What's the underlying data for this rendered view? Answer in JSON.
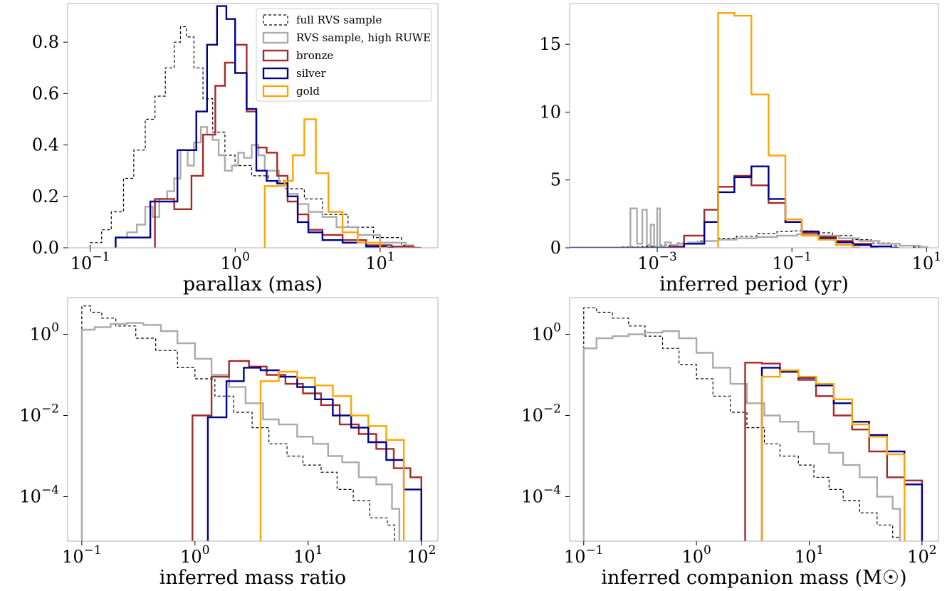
{
  "colors": {
    "full_rvs": "#000000",
    "high_ruwe": "#aaaaaa",
    "bronze": "#a52a2a",
    "silver": "#00008b",
    "gold": "#ffa500"
  },
  "legend": [
    {
      "key": "full_rvs",
      "label": "full RVS sample",
      "dashed": true
    },
    {
      "key": "high_ruwe",
      "label": "RVS sample, high RUWE",
      "dashed": false
    },
    {
      "key": "bronze",
      "label": "bronze",
      "dashed": false
    },
    {
      "key": "silver",
      "label": "silver",
      "dashed": false
    },
    {
      "key": "gold",
      "label": "gold",
      "dashed": false
    }
  ],
  "chart_data": [
    {
      "type": "step",
      "xlabel": "parallax (mas)",
      "xscale": "log",
      "yscale": "linear",
      "xlim": [
        0.07,
        25
      ],
      "ylim": [
        0,
        0.95
      ],
      "xticks": [
        {
          "v": 0.1,
          "b": "10",
          "e": "−1"
        },
        {
          "v": 1,
          "b": "10",
          "e": "0"
        },
        {
          "v": 10,
          "b": "10",
          "e": "1"
        }
      ],
      "yticks": [
        {
          "v": 0,
          "t": "0.0"
        },
        {
          "v": 0.2,
          "t": "0.2"
        },
        {
          "v": 0.4,
          "t": "0.4"
        },
        {
          "v": 0.6,
          "t": "0.6"
        },
        {
          "v": 0.8,
          "t": "0.8"
        }
      ],
      "legend_position": "top-right",
      "series": [
        {
          "key": "full_rvs",
          "x": [
            0.1,
            0.12,
            0.14,
            0.17,
            0.2,
            0.24,
            0.28,
            0.33,
            0.38,
            0.42,
            0.46,
            0.52,
            0.6,
            0.7,
            0.85,
            1.0,
            1.3,
            1.7,
            2.2,
            3,
            4,
            6,
            9,
            14
          ],
          "y": [
            0.02,
            0.07,
            0.14,
            0.27,
            0.38,
            0.5,
            0.59,
            0.7,
            0.8,
            0.86,
            0.82,
            0.7,
            0.58,
            0.45,
            0.36,
            0.32,
            0.28,
            0.26,
            0.23,
            0.19,
            0.13,
            0.08,
            0.04,
            0.01
          ]
        },
        {
          "key": "high_ruwe",
          "x": [
            0.15,
            0.18,
            0.21,
            0.24,
            0.27,
            0.3,
            0.34,
            0.38,
            0.42,
            0.47,
            0.52,
            0.58,
            0.64,
            0.7,
            0.77,
            0.85,
            0.95,
            1.05,
            1.15,
            1.3,
            1.45,
            1.6,
            1.8,
            2.0,
            2.3,
            2.7,
            3.2,
            4,
            5,
            7,
            10,
            15
          ],
          "y": [
            0.04,
            0.06,
            0.09,
            0.16,
            0.12,
            0.19,
            0.22,
            0.27,
            0.38,
            0.32,
            0.41,
            0.47,
            0.44,
            0.42,
            0.36,
            0.3,
            0.32,
            0.37,
            0.35,
            0.4,
            0.36,
            0.3,
            0.3,
            0.25,
            0.21,
            0.17,
            0.14,
            0.12,
            0.08,
            0.05,
            0.02,
            0.01
          ]
        },
        {
          "key": "bronze",
          "x": [
            0.28,
            0.38,
            0.5,
            0.6,
            0.73,
            0.85,
            1.0,
            1.2,
            1.4,
            1.65,
            1.95,
            2.3,
            2.7,
            3.2,
            4,
            5.5,
            8,
            12,
            17
          ],
          "y": [
            0.19,
            0.15,
            0.28,
            0.44,
            0.63,
            0.72,
            0.79,
            0.53,
            0.39,
            0.37,
            0.28,
            0.18,
            0.13,
            0.07,
            0.05,
            0.03,
            0.01,
            0.005,
            0.0
          ]
        },
        {
          "key": "silver",
          "x": [
            0.15,
            0.26,
            0.4,
            0.54,
            0.64,
            0.75,
            0.87,
            1.0,
            1.2,
            1.4,
            1.65,
            1.95,
            2.3,
            2.7,
            3.2,
            4,
            5.5,
            8,
            11
          ],
          "y": [
            0.04,
            0.18,
            0.38,
            0.53,
            0.79,
            0.94,
            0.89,
            0.68,
            0.54,
            0.3,
            0.26,
            0.25,
            0.2,
            0.1,
            0.06,
            0.03,
            0.02,
            0.005,
            0.0
          ]
        },
        {
          "key": "gold",
          "x": [
            1.6,
            2.2,
            2.5,
            3.0,
            3.6,
            4.4,
            5.5,
            7,
            10
          ],
          "y": [
            0.24,
            0.26,
            0.36,
            0.5,
            0.29,
            0.14,
            0.06,
            0.02,
            0.0
          ]
        }
      ]
    },
    {
      "type": "step",
      "xlabel": "inferred period (yr)",
      "xscale": "log",
      "yscale": "linear",
      "xlim": [
        5e-05,
        15
      ],
      "ylim": [
        0,
        18
      ],
      "xticks": [
        {
          "v": 0.001,
          "b": "10",
          "e": "−3"
        },
        {
          "v": 0.1,
          "b": "10",
          "e": "−1"
        },
        {
          "v": 10,
          "b": "10",
          "e": "1"
        }
      ],
      "yticks": [
        {
          "v": 0,
          "t": "0"
        },
        {
          "v": 5,
          "t": "5"
        },
        {
          "v": 10,
          "t": "10"
        },
        {
          "v": 15,
          "t": "15"
        }
      ],
      "series": [
        {
          "key": "full_rvs",
          "x": [
            0.0003,
            0.0006,
            0.001,
            0.002,
            0.004,
            0.008,
            0.015,
            0.03,
            0.06,
            0.1,
            0.2,
            0.4,
            0.8,
            1.5,
            3,
            6
          ],
          "y": [
            0.05,
            0.1,
            0.2,
            0.35,
            0.5,
            0.7,
            0.85,
            1.05,
            1.2,
            1.25,
            1.1,
            0.9,
            0.6,
            0.35,
            0.15,
            0.05
          ]
        },
        {
          "key": "high_ruwe",
          "x": [
            0.0004,
            0.0005,
            0.0006,
            0.0007,
            0.0008,
            0.0009,
            0.001,
            0.0011,
            0.0013,
            0.0016,
            0.002,
            0.003,
            0.005,
            0.008,
            0.015,
            0.03,
            0.06,
            0.12,
            0.25,
            0.5,
            1,
            2,
            4,
            8
          ],
          "y": [
            2.9,
            0.3,
            2.8,
            0.2,
            1.7,
            0.1,
            2.9,
            0.1,
            0.4,
            0.2,
            0.3,
            0.4,
            0.5,
            0.6,
            0.7,
            0.8,
            0.9,
            1.0,
            0.9,
            0.7,
            0.5,
            0.3,
            0.15,
            0.05
          ]
        },
        {
          "key": "bronze",
          "x": [
            0.0015,
            0.0025,
            0.005,
            0.008,
            0.014,
            0.025,
            0.045,
            0.08,
            0.14,
            0.25,
            0.45,
            0.8,
            1.5
          ],
          "y": [
            0.1,
            0.9,
            2.8,
            4.5,
            5.3,
            4.6,
            3.3,
            1.9,
            1.1,
            0.8,
            0.5,
            0.3,
            0.0
          ]
        },
        {
          "key": "silver",
          "x": [
            5e-05,
            0.0025,
            0.005,
            0.008,
            0.014,
            0.025,
            0.045,
            0.08,
            0.14,
            0.25,
            0.45,
            0.8,
            1.5,
            3
          ],
          "y": [
            0.0,
            0.3,
            1.9,
            4.1,
            5.2,
            6.0,
            3.6,
            1.9,
            1.2,
            0.7,
            0.4,
            0.2,
            0.1,
            0.0
          ]
        },
        {
          "key": "gold",
          "x": [
            0.008,
            0.014,
            0.025,
            0.045,
            0.08,
            0.14,
            0.25,
            0.45,
            0.8
          ],
          "y": [
            17.3,
            17.1,
            11.3,
            6.8,
            2.1,
            0.9,
            0.6,
            0.2,
            0.0
          ]
        }
      ]
    },
    {
      "type": "step",
      "xlabel": "inferred mass ratio",
      "xscale": "log",
      "yscale": "log",
      "xlim": [
        0.075,
        140
      ],
      "ylim": [
        8e-06,
        8
      ],
      "xticks": [
        {
          "v": 0.1,
          "b": "10",
          "e": "−1"
        },
        {
          "v": 1,
          "b": "10",
          "e": "0"
        },
        {
          "v": 10,
          "b": "10",
          "e": "1"
        },
        {
          "v": 100,
          "b": "10",
          "e": "2"
        }
      ],
      "yticks": [
        {
          "v": 1,
          "b": "10",
          "e": "0"
        },
        {
          "v": 0.01,
          "b": "10",
          "e": "−2"
        },
        {
          "v": 0.0001,
          "b": "10",
          "e": "−4"
        }
      ],
      "series": [
        {
          "key": "full_rvs",
          "x": [
            0.1,
            0.12,
            0.15,
            0.2,
            0.3,
            0.45,
            0.7,
            1,
            1.5,
            2.2,
            3.2,
            4.5,
            6.5,
            9,
            13,
            18,
            25,
            35,
            50
          ],
          "y": [
            5,
            3.5,
            2.5,
            1.6,
            0.8,
            0.4,
            0.15,
            0.08,
            0.03,
            0.012,
            0.005,
            0.002,
            0.001,
            0.0006,
            0.0004,
            0.00015,
            8e-05,
            3e-05,
            2e-05
          ]
        },
        {
          "key": "high_ruwe",
          "x": [
            0.1,
            0.13,
            0.18,
            0.25,
            0.35,
            0.5,
            0.7,
            1,
            1.4,
            2,
            2.8,
            4,
            5.5,
            8,
            11,
            15,
            20,
            28,
            40,
            55
          ],
          "y": [
            1.3,
            1.5,
            1.8,
            1.9,
            1.7,
            1.2,
            0.6,
            0.25,
            0.1,
            0.05,
            0.02,
            0.008,
            0.006,
            0.003,
            0.002,
            0.001,
            0.0007,
            0.0003,
            0.0002,
            5e-05
          ]
        },
        {
          "key": "bronze",
          "x": [
            0.95,
            1.4,
            2,
            3,
            4.3,
            6.3,
            9,
            13,
            19,
            28,
            40,
            57,
            80,
            100
          ],
          "y": [
            0.01,
            0.09,
            0.22,
            0.16,
            0.1,
            0.06,
            0.035,
            0.018,
            0.006,
            0.0035,
            0.0015,
            0.0005,
            0.0003,
            0.0
          ]
        },
        {
          "key": "silver",
          "x": [
            1.3,
            1.9,
            2.7,
            3.8,
            5.5,
            8,
            11.5,
            16.5,
            24,
            34,
            49,
            70,
            100
          ],
          "y": [
            0.009,
            0.07,
            0.15,
            0.13,
            0.09,
            0.05,
            0.025,
            0.01,
            0.005,
            0.0022,
            0.0008,
            0.00015,
            0.0
          ]
        },
        {
          "key": "gold",
          "x": [
            3.8,
            5.5,
            8,
            11.5,
            16.5,
            24,
            34,
            49,
            70
          ],
          "y": [
            0.07,
            0.12,
            0.085,
            0.055,
            0.03,
            0.01,
            0.0055,
            0.0025,
            0.0
          ]
        }
      ]
    },
    {
      "type": "step",
      "xlabel": "inferred companion mass (M☉)",
      "xscale": "log",
      "yscale": "log",
      "xlim": [
        0.075,
        140
      ],
      "ylim": [
        8e-06,
        8
      ],
      "xticks": [
        {
          "v": 0.1,
          "b": "10",
          "e": "−1"
        },
        {
          "v": 1,
          "b": "10",
          "e": "0"
        },
        {
          "v": 10,
          "b": "10",
          "e": "1"
        },
        {
          "v": 100,
          "b": "10",
          "e": "2"
        }
      ],
      "yticks": [
        {
          "v": 1,
          "b": "10",
          "e": "0"
        },
        {
          "v": 0.01,
          "b": "10",
          "e": "−2"
        },
        {
          "v": 0.0001,
          "b": "10",
          "e": "−4"
        }
      ],
      "series": [
        {
          "key": "full_rvs",
          "x": [
            0.1,
            0.13,
            0.18,
            0.25,
            0.35,
            0.5,
            0.7,
            1,
            1.4,
            2,
            2.8,
            4,
            5.5,
            8,
            11,
            15,
            20,
            28,
            40,
            55
          ],
          "y": [
            4.5,
            3.5,
            2.5,
            1.6,
            0.9,
            0.45,
            0.18,
            0.08,
            0.03,
            0.012,
            0.005,
            0.002,
            0.001,
            0.0006,
            0.0003,
            0.00015,
            8e-05,
            4e-05,
            2e-05,
            1e-05
          ]
        },
        {
          "key": "high_ruwe",
          "x": [
            0.1,
            0.13,
            0.18,
            0.25,
            0.35,
            0.5,
            0.7,
            1,
            1.4,
            2,
            2.8,
            4,
            5.5,
            8,
            11,
            15,
            20,
            28,
            40,
            55
          ],
          "y": [
            0.45,
            0.8,
            0.9,
            1.0,
            1.1,
            1.2,
            0.8,
            0.35,
            0.15,
            0.06,
            0.02,
            0.01,
            0.007,
            0.004,
            0.002,
            0.0012,
            0.0006,
            0.0003,
            0.0001,
            5e-05
          ]
        },
        {
          "key": "bronze",
          "x": [
            2.7,
            3.8,
            5.5,
            8,
            11.5,
            16.5,
            24,
            34,
            49,
            70,
            100
          ],
          "y": [
            0.2,
            0.19,
            0.12,
            0.075,
            0.03,
            0.01,
            0.0045,
            0.0013,
            0.0003,
            0.00025,
            0.0
          ]
        },
        {
          "key": "silver",
          "x": [
            3.8,
            5.5,
            8,
            11.5,
            16.5,
            24,
            34,
            49,
            70,
            100
          ],
          "y": [
            0.15,
            0.12,
            0.085,
            0.055,
            0.02,
            0.007,
            0.0033,
            0.0013,
            0.0002,
            0.0
          ]
        },
        {
          "key": "gold",
          "x": [
            3.8,
            5.5,
            8,
            11.5,
            16.5,
            24,
            34,
            49,
            70
          ],
          "y": [
            0.09,
            0.13,
            0.09,
            0.06,
            0.025,
            0.006,
            0.003,
            0.0011,
            0.0
          ]
        }
      ]
    }
  ]
}
